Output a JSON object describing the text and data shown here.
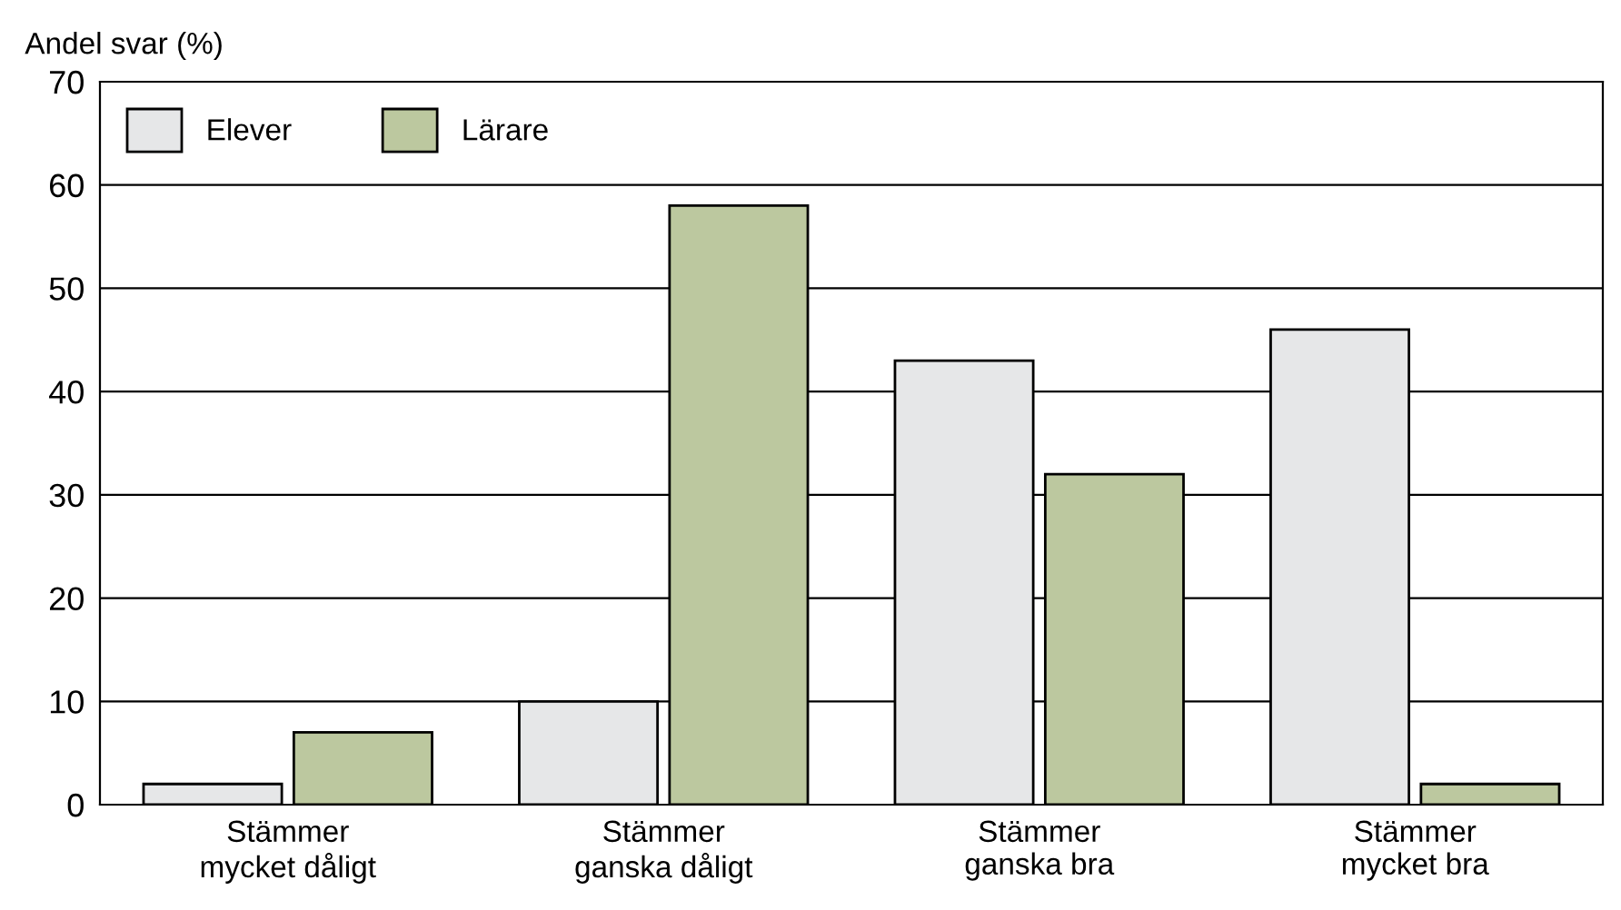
{
  "chart_data": {
    "type": "bar",
    "ylabel": "Andel svar (%)",
    "categories": [
      "Stämmer\nmycket dåligt",
      "Stämmer\nganska dåligt",
      "Stämmer\nganska bra",
      "Stämmer\nmycket bra"
    ],
    "series": [
      {
        "name": "Elever",
        "color": "#e6e7e8",
        "values": [
          2,
          10,
          43,
          46
        ]
      },
      {
        "name": "Lärare",
        "color": "#bcc89f",
        "values": [
          7,
          58,
          32,
          2
        ]
      }
    ],
    "ylim": [
      0,
      70
    ],
    "yticks": [
      0,
      10,
      20,
      30,
      40,
      50,
      60,
      70
    ],
    "grid": "y",
    "legend": "top left"
  }
}
